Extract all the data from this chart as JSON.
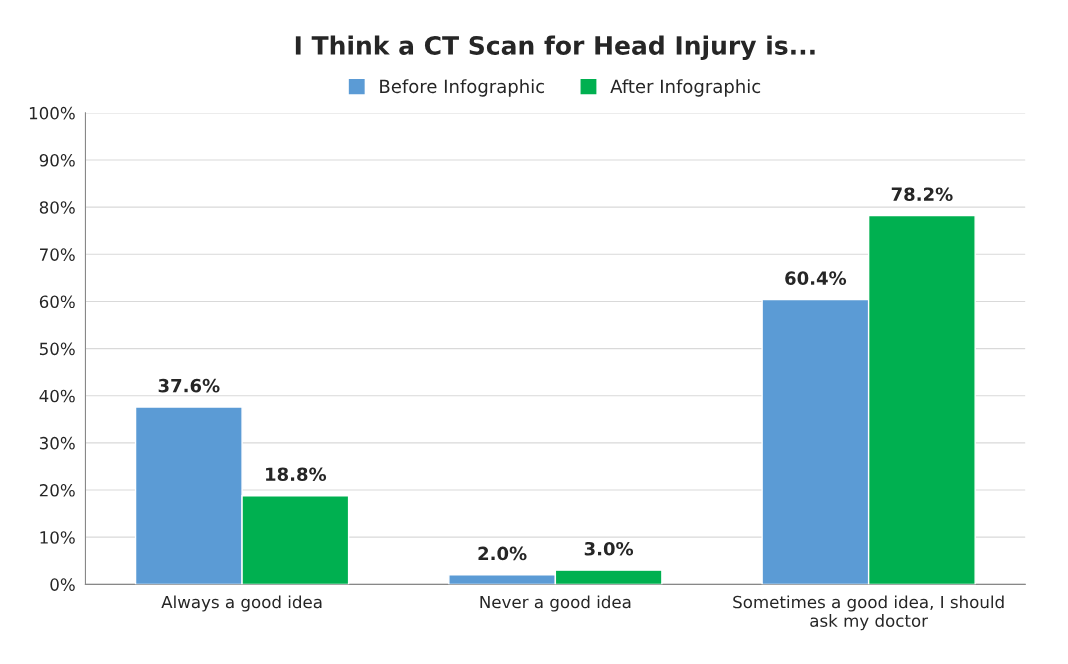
{
  "chart_data": {
    "type": "bar",
    "title": "I Think a CT Scan for Head Injury is...",
    "categories": [
      "Always a good idea",
      "Never a good idea",
      "Sometimes a good idea, I should\nask my doctor"
    ],
    "series": [
      {
        "name": "Before Infographic",
        "color": "#5b9bd5",
        "values": [
          37.6,
          2.0,
          60.4
        ],
        "value_labels": [
          "37.6%",
          "2.0%",
          "60.4%"
        ]
      },
      {
        "name": "After Infographic",
        "color": "#00b050",
        "values": [
          18.8,
          3.0,
          78.2
        ],
        "value_labels": [
          "18.8%",
          "3.0%",
          "78.2%"
        ]
      }
    ],
    "ylim": [
      0,
      100
    ],
    "yticks": [
      {
        "value": 0,
        "label": "0%"
      },
      {
        "value": 10,
        "label": "10%"
      },
      {
        "value": 20,
        "label": "20%"
      },
      {
        "value": 30,
        "label": "30%"
      },
      {
        "value": 40,
        "label": "40%"
      },
      {
        "value": 50,
        "label": "50%"
      },
      {
        "value": 60,
        "label": "60%"
      },
      {
        "value": 70,
        "label": "70%"
      },
      {
        "value": 80,
        "label": "80%"
      },
      {
        "value": 90,
        "label": "90%"
      },
      {
        "value": 100,
        "label": "100%"
      }
    ],
    "grid": "y",
    "legend": "top"
  }
}
